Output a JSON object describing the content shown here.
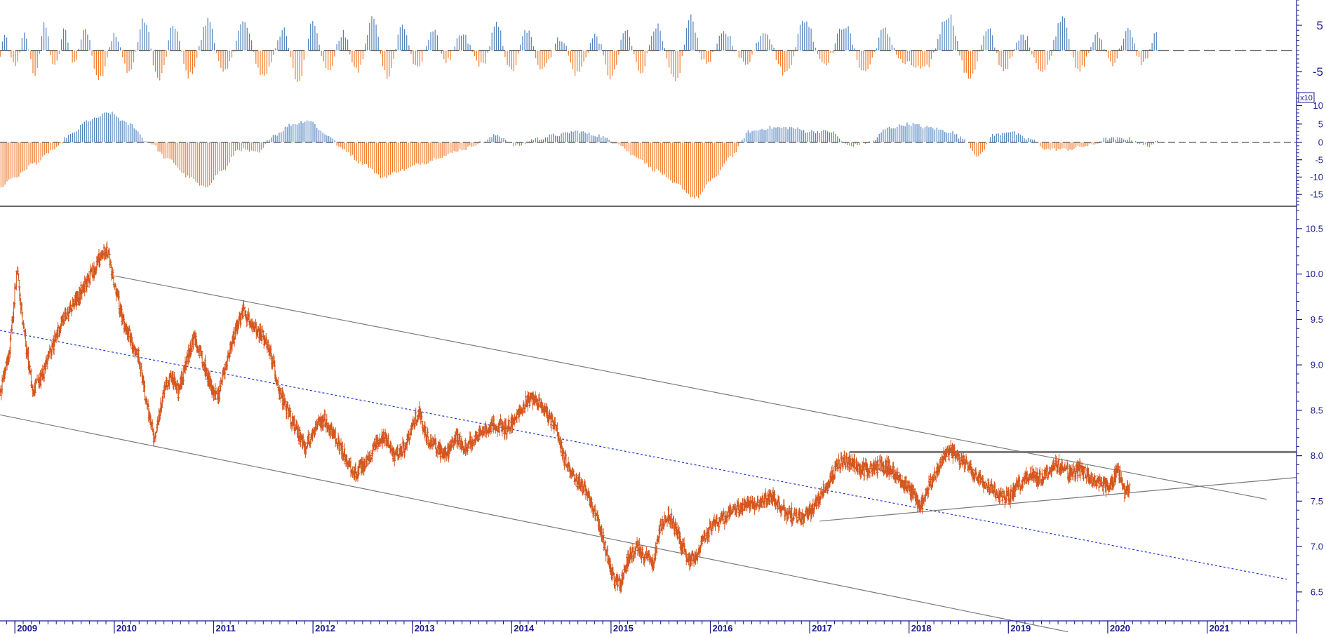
{
  "chart_data": [
    {
      "type": "bar",
      "panel": "top-oscillator",
      "scale_marker": "",
      "y_ticks": [
        5,
        -5
      ],
      "ylim": [
        -10,
        10
      ],
      "zero_line": "dashed",
      "positive_color": "#4f81bd",
      "negative_color": "#f07828",
      "shape": [
        [
          2008.5,
          3.5
        ],
        [
          2008.6,
          -4.5
        ],
        [
          2008.7,
          4.5
        ],
        [
          2008.8,
          -5
        ],
        [
          2008.9,
          2.5
        ],
        [
          2009.0,
          -3.5
        ],
        [
          2009.1,
          3
        ],
        [
          2009.2,
          -5.5
        ],
        [
          2009.3,
          5
        ],
        [
          2009.4,
          -4
        ],
        [
          2009.5,
          4
        ],
        [
          2009.6,
          -3
        ],
        [
          2009.7,
          4.5
        ],
        [
          2009.85,
          -6.5
        ],
        [
          2010.0,
          3
        ],
        [
          2010.15,
          -5
        ],
        [
          2010.3,
          6
        ],
        [
          2010.45,
          -7
        ],
        [
          2010.6,
          5
        ],
        [
          2010.75,
          -6
        ],
        [
          2010.95,
          6
        ],
        [
          2011.1,
          -5.5
        ],
        [
          2011.3,
          5.5
        ],
        [
          2011.5,
          -6
        ],
        [
          2011.7,
          4
        ],
        [
          2011.85,
          -7.5
        ],
        [
          2012.0,
          6
        ],
        [
          2012.15,
          -5
        ],
        [
          2012.3,
          3.5
        ],
        [
          2012.45,
          -5
        ],
        [
          2012.6,
          6.5
        ],
        [
          2012.75,
          -6
        ],
        [
          2012.9,
          5
        ],
        [
          2013.05,
          -4.5
        ],
        [
          2013.2,
          4
        ],
        [
          2013.35,
          -2.5
        ],
        [
          2013.5,
          3
        ],
        [
          2013.7,
          -3.5
        ],
        [
          2013.85,
          5
        ],
        [
          2014.0,
          -5
        ],
        [
          2014.15,
          4
        ],
        [
          2014.3,
          -4
        ],
        [
          2014.5,
          2.5
        ],
        [
          2014.65,
          -5.5
        ],
        [
          2014.85,
          3
        ],
        [
          2015.0,
          -6.5
        ],
        [
          2015.15,
          4
        ],
        [
          2015.3,
          -5
        ],
        [
          2015.45,
          5
        ],
        [
          2015.65,
          -7.5
        ],
        [
          2015.8,
          6.5
        ],
        [
          2015.95,
          -3
        ],
        [
          2016.15,
          3.5
        ],
        [
          2016.35,
          -3
        ],
        [
          2016.55,
          4
        ],
        [
          2016.75,
          -5.5
        ],
        [
          2016.95,
          6
        ],
        [
          2017.15,
          -3
        ],
        [
          2017.35,
          5
        ],
        [
          2017.55,
          -5
        ],
        [
          2017.75,
          4
        ],
        [
          2017.95,
          -3
        ],
        [
          2018.15,
          -4.5
        ],
        [
          2018.4,
          7
        ],
        [
          2018.6,
          -6.5
        ],
        [
          2018.8,
          4
        ],
        [
          2018.95,
          -4.5
        ],
        [
          2019.15,
          3
        ],
        [
          2019.35,
          -5
        ],
        [
          2019.55,
          7
        ],
        [
          2019.7,
          -5
        ],
        [
          2019.9,
          3
        ],
        [
          2020.05,
          -3
        ],
        [
          2020.2,
          4
        ],
        [
          2020.35,
          -3
        ],
        [
          2020.5,
          3.5
        ]
      ]
    },
    {
      "type": "bar",
      "panel": "middle-oscillator",
      "scale_marker": "x10",
      "y_ticks": [
        10,
        5,
        0,
        -5,
        -10,
        -15
      ],
      "ylim": [
        -18,
        12
      ],
      "zero_line": "dashed",
      "positive_color": "#4f81bd",
      "negative_color": "#f07828",
      "shape": [
        [
          2008.5,
          -16
        ],
        [
          2008.8,
          -14
        ],
        [
          2009.0,
          -10
        ],
        [
          2009.2,
          -6
        ],
        [
          2009.4,
          -2
        ],
        [
          2009.55,
          2
        ],
        [
          2009.75,
          6
        ],
        [
          2009.95,
          8
        ],
        [
          2010.15,
          5
        ],
        [
          2010.35,
          0
        ],
        [
          2010.55,
          -5
        ],
        [
          2010.75,
          -10
        ],
        [
          2010.9,
          -13
        ],
        [
          2011.1,
          -8
        ],
        [
          2011.25,
          -2
        ],
        [
          2011.45,
          -3
        ],
        [
          2011.6,
          2
        ],
        [
          2011.8,
          5
        ],
        [
          2011.95,
          6
        ],
        [
          2012.15,
          2
        ],
        [
          2012.3,
          -2
        ],
        [
          2012.5,
          -6
        ],
        [
          2012.7,
          -10
        ],
        [
          2012.9,
          -8
        ],
        [
          2013.1,
          -6
        ],
        [
          2013.3,
          -4
        ],
        [
          2013.5,
          -2
        ],
        [
          2013.7,
          0
        ],
        [
          2013.85,
          2
        ],
        [
          2014.05,
          -1
        ],
        [
          2014.25,
          1
        ],
        [
          2014.45,
          2
        ],
        [
          2014.65,
          3
        ],
        [
          2014.85,
          2
        ],
        [
          2015.05,
          0
        ],
        [
          2015.25,
          -4
        ],
        [
          2015.45,
          -8
        ],
        [
          2015.65,
          -12
        ],
        [
          2015.85,
          -16
        ],
        [
          2016.05,
          -10
        ],
        [
          2016.2,
          -4
        ],
        [
          2016.4,
          3
        ],
        [
          2016.6,
          4
        ],
        [
          2016.8,
          4
        ],
        [
          2017.0,
          3
        ],
        [
          2017.2,
          3
        ],
        [
          2017.4,
          -1
        ],
        [
          2017.6,
          0
        ],
        [
          2017.8,
          4
        ],
        [
          2018.0,
          5
        ],
        [
          2018.2,
          4
        ],
        [
          2018.4,
          3
        ],
        [
          2018.55,
          1
        ],
        [
          2018.7,
          -4
        ],
        [
          2018.85,
          2
        ],
        [
          2019.0,
          3
        ],
        [
          2019.2,
          1
        ],
        [
          2019.4,
          -2
        ],
        [
          2019.6,
          -2
        ],
        [
          2019.8,
          -1
        ],
        [
          2020.0,
          1
        ],
        [
          2020.2,
          1
        ],
        [
          2020.4,
          -1
        ],
        [
          2020.5,
          0
        ]
      ]
    },
    {
      "type": "line",
      "panel": "price",
      "style": "ohlc-bars",
      "color": "#d4561e",
      "x_ticks": [
        "2009",
        "2010",
        "2011",
        "2012",
        "2013",
        "2014",
        "2015",
        "2016",
        "2017",
        "2018",
        "2019",
        "2020",
        "2021"
      ],
      "y_ticks": [
        10.5,
        10.0,
        9.5,
        9.0,
        8.5,
        8.0,
        7.5,
        7.0,
        6.5
      ],
      "xlim": [
        2008.85,
        2021.9
      ],
      "ylim": [
        6.22,
        10.7
      ],
      "grid": false,
      "path": [
        [
          2008.85,
          8.7
        ],
        [
          2008.95,
          9.2
        ],
        [
          2009.02,
          10.05
        ],
        [
          2009.1,
          9.3
        ],
        [
          2009.18,
          8.7
        ],
        [
          2009.28,
          8.9
        ],
        [
          2009.38,
          9.2
        ],
        [
          2009.48,
          9.5
        ],
        [
          2009.6,
          9.7
        ],
        [
          2009.72,
          9.9
        ],
        [
          2009.82,
          10.1
        ],
        [
          2009.92,
          10.3
        ],
        [
          2010.0,
          9.9
        ],
        [
          2010.08,
          9.5
        ],
        [
          2010.16,
          9.3
        ],
        [
          2010.24,
          9.1
        ],
        [
          2010.32,
          8.6
        ],
        [
          2010.4,
          8.2
        ],
        [
          2010.48,
          8.6
        ],
        [
          2010.56,
          8.9
        ],
        [
          2010.64,
          8.7
        ],
        [
          2010.72,
          9.0
        ],
        [
          2010.8,
          9.3
        ],
        [
          2010.88,
          9.1
        ],
        [
          2010.96,
          8.8
        ],
        [
          2011.04,
          8.6
        ],
        [
          2011.12,
          9.0
        ],
        [
          2011.2,
          9.3
        ],
        [
          2011.3,
          9.6
        ],
        [
          2011.4,
          9.4
        ],
        [
          2011.5,
          9.3
        ],
        [
          2011.58,
          9.1
        ],
        [
          2011.66,
          8.7
        ],
        [
          2011.74,
          8.5
        ],
        [
          2011.82,
          8.3
        ],
        [
          2011.92,
          8.1
        ],
        [
          2012.02,
          8.3
        ],
        [
          2012.12,
          8.4
        ],
        [
          2012.22,
          8.2
        ],
        [
          2012.32,
          8.0
        ],
        [
          2012.42,
          7.8
        ],
        [
          2012.52,
          7.9
        ],
        [
          2012.62,
          8.1
        ],
        [
          2012.72,
          8.2
        ],
        [
          2012.82,
          8.0
        ],
        [
          2012.92,
          8.1
        ],
        [
          2013.0,
          8.3
        ],
        [
          2013.06,
          8.5
        ],
        [
          2013.14,
          8.2
        ],
        [
          2013.24,
          8.1
        ],
        [
          2013.34,
          8.0
        ],
        [
          2013.44,
          8.2
        ],
        [
          2013.54,
          8.1
        ],
        [
          2013.64,
          8.2
        ],
        [
          2013.74,
          8.3
        ],
        [
          2013.84,
          8.35
        ],
        [
          2013.94,
          8.3
        ],
        [
          2014.04,
          8.4
        ],
        [
          2014.14,
          8.6
        ],
        [
          2014.24,
          8.65
        ],
        [
          2014.34,
          8.5
        ],
        [
          2014.44,
          8.3
        ],
        [
          2014.52,
          8.0
        ],
        [
          2014.6,
          7.8
        ],
        [
          2014.68,
          7.7
        ],
        [
          2014.76,
          7.6
        ],
        [
          2014.86,
          7.3
        ],
        [
          2014.94,
          7.0
        ],
        [
          2015.02,
          6.65
        ],
        [
          2015.1,
          6.6
        ],
        [
          2015.18,
          6.9
        ],
        [
          2015.26,
          7.0
        ],
        [
          2015.34,
          6.9
        ],
        [
          2015.42,
          6.8
        ],
        [
          2015.5,
          7.2
        ],
        [
          2015.58,
          7.35
        ],
        [
          2015.68,
          7.1
        ],
        [
          2015.78,
          6.85
        ],
        [
          2015.86,
          6.9
        ],
        [
          2015.94,
          7.1
        ],
        [
          2016.02,
          7.25
        ],
        [
          2016.12,
          7.3
        ],
        [
          2016.22,
          7.4
        ],
        [
          2016.32,
          7.45
        ],
        [
          2016.42,
          7.45
        ],
        [
          2016.52,
          7.5
        ],
        [
          2016.62,
          7.55
        ],
        [
          2016.72,
          7.4
        ],
        [
          2016.82,
          7.35
        ],
        [
          2016.92,
          7.3
        ],
        [
          2017.02,
          7.4
        ],
        [
          2017.12,
          7.6
        ],
        [
          2017.22,
          7.75
        ],
        [
          2017.32,
          7.95
        ],
        [
          2017.42,
          7.9
        ],
        [
          2017.52,
          7.85
        ],
        [
          2017.62,
          7.85
        ],
        [
          2017.72,
          7.9
        ],
        [
          2017.82,
          7.85
        ],
        [
          2017.92,
          7.75
        ],
        [
          2018.02,
          7.6
        ],
        [
          2018.12,
          7.45
        ],
        [
          2018.22,
          7.7
        ],
        [
          2018.32,
          7.95
        ],
        [
          2018.42,
          8.05
        ],
        [
          2018.52,
          7.95
        ],
        [
          2018.62,
          7.85
        ],
        [
          2018.72,
          7.75
        ],
        [
          2018.82,
          7.65
        ],
        [
          2018.92,
          7.55
        ],
        [
          2019.02,
          7.55
        ],
        [
          2019.12,
          7.7
        ],
        [
          2019.22,
          7.8
        ],
        [
          2019.32,
          7.75
        ],
        [
          2019.42,
          7.85
        ],
        [
          2019.52,
          7.9
        ],
        [
          2019.62,
          7.8
        ],
        [
          2019.72,
          7.85
        ],
        [
          2019.82,
          7.75
        ],
        [
          2019.92,
          7.7
        ],
        [
          2020.02,
          7.65
        ],
        [
          2020.1,
          7.85
        ],
        [
          2020.16,
          7.6
        ],
        [
          2020.22,
          7.65
        ]
      ],
      "lines": {
        "channel_upper": [
          [
            2010.0,
            9.98
          ],
          [
            2021.6,
            7.52
          ]
        ],
        "channel_lower": [
          [
            2008.85,
            8.45
          ],
          [
            2019.6,
            6.06
          ]
        ],
        "midline_dotted_blue": [
          [
            2008.85,
            9.38
          ],
          [
            2021.8,
            6.64
          ]
        ],
        "resistance_horizontal": [
          [
            2017.4,
            8.04
          ],
          [
            2021.9,
            8.04
          ]
        ],
        "rising_trendline": [
          [
            2017.1,
            7.28
          ],
          [
            2021.9,
            7.76
          ]
        ]
      }
    }
  ]
}
